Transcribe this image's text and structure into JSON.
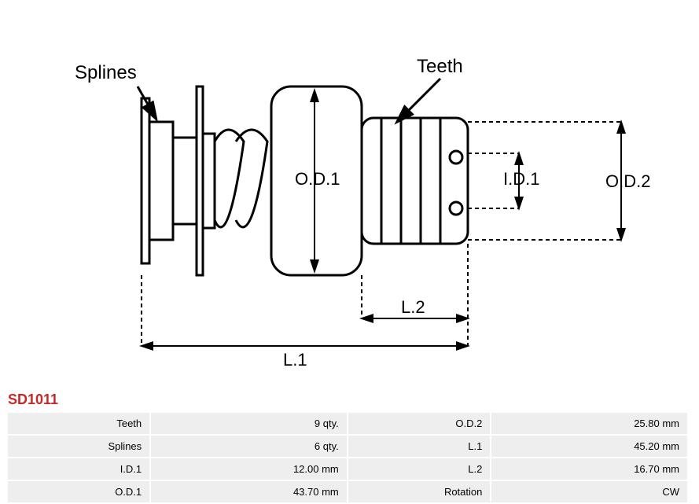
{
  "diagram": {
    "labels": {
      "splines": "Splines",
      "teeth": "Teeth",
      "od1": "O.D.1",
      "od2": "O.D.2",
      "id1": "I.D.1",
      "l1": "L.1",
      "l2": "L.2"
    },
    "colors": {
      "stroke": "#000000",
      "dash": "#000000",
      "bg": "#ffffff",
      "fill": "#ffffff"
    },
    "stroke_width": 3,
    "dash_width": 2,
    "dash_pattern": "5,4",
    "label_fontsize": 24,
    "dim_fontsize": 22
  },
  "part_number": "SD1011",
  "specs": [
    {
      "label": "Teeth",
      "value": "9 qty.",
      "label2": "O.D.2",
      "value2": "25.80 mm"
    },
    {
      "label": "Splines",
      "value": "6 qty.",
      "label2": "L.1",
      "value2": "45.20 mm"
    },
    {
      "label": "I.D.1",
      "value": "12.00 mm",
      "label2": "L.2",
      "value2": "16.70 mm"
    },
    {
      "label": "O.D.1",
      "value": "43.70 mm",
      "label2": "Rotation",
      "value2": "CW"
    }
  ],
  "table": {
    "bg_color": "#eeeeee",
    "font_size": 13,
    "text_color": "#000000"
  },
  "part_number_color": "#c62828"
}
